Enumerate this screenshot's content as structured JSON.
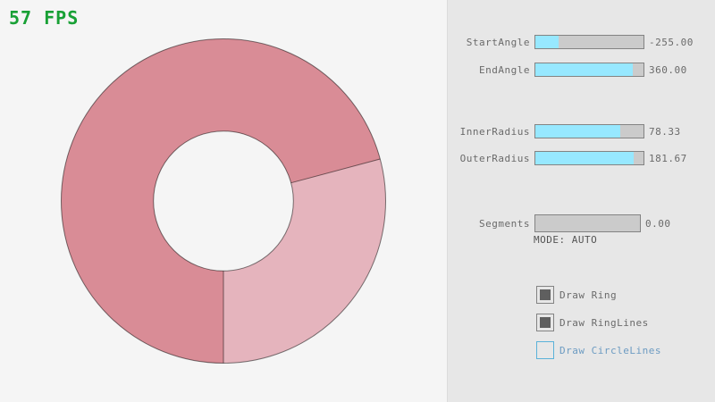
{
  "fps": {
    "text": "57 FPS"
  },
  "ring": {
    "type": "ring-shape-demo",
    "start_angle": -255.0,
    "end_angle": 360.0,
    "inner_radius": 78.33,
    "outer_radius": 181.67,
    "segments": 0.0,
    "mode": "AUTO",
    "overlap_sector_deg": 255,
    "single_sector_deg": 105
  },
  "panel": {
    "sliders": [
      {
        "label": "StartAngle",
        "value": "-255.00",
        "fill_pct": 21.7
      },
      {
        "label": "EndAngle",
        "value": "360.00",
        "fill_pct": 90.0
      },
      {
        "label": "InnerRadius",
        "value": "78.33",
        "fill_pct": 78.3
      },
      {
        "label": "OuterRadius",
        "value": "181.67",
        "fill_pct": 90.8
      },
      {
        "label": "Segments",
        "value": "0.00",
        "fill_pct": 0
      }
    ],
    "mode_text": "MODE: AUTO",
    "checkboxes": [
      {
        "label": "Draw Ring",
        "checked": true,
        "focused": false
      },
      {
        "label": "Draw RingLines",
        "checked": true,
        "focused": false
      },
      {
        "label": "Draw CircleLines",
        "checked": false,
        "focused": true
      }
    ]
  },
  "colors": {
    "background": "#F5F5F5",
    "panel_bg": "#E7E7E7",
    "panel_border": "#DBDBDB",
    "fps_green": "#18A035",
    "slider_border": "#838383",
    "slider_track": "#CBCBCB",
    "slider_fill": "#97E8FF",
    "label_text": "#6A6A6A",
    "mode_text": "#545454",
    "checkbox_border": "#838383",
    "checkbox_check": "#5F5F5F",
    "checkbox_focused_border": "#5BB2D9",
    "checkbox_focused_text": "#6C9BC2",
    "ring_light": "#E5B4BD",
    "ring_dark": "#D98C96",
    "ring_line": "rgba(0,0,0,0.5)"
  }
}
